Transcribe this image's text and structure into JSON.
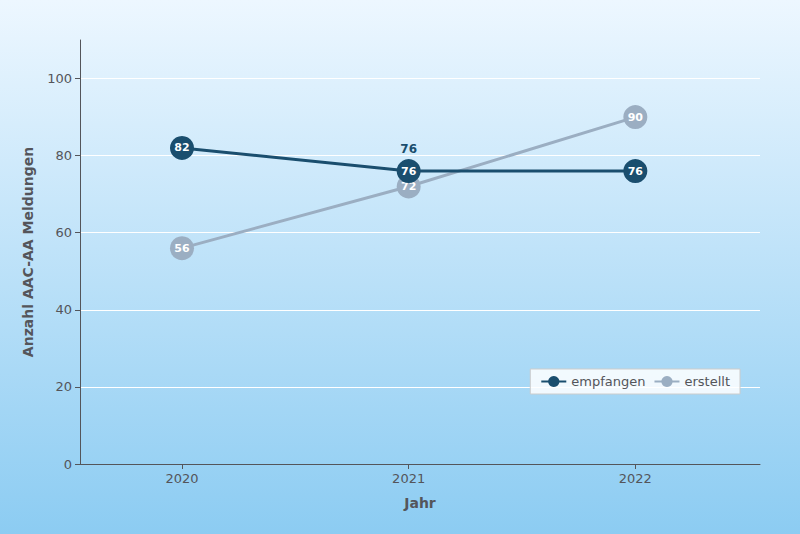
{
  "chart_data": {
    "type": "line",
    "x": [
      2020,
      2021,
      2022
    ],
    "series": [
      {
        "name": "empfangen",
        "color": "#1a4e6e",
        "values": [
          82,
          76,
          76
        ]
      },
      {
        "name": "erstellt",
        "color": "#9baec2",
        "values": [
          56,
          72,
          90
        ]
      }
    ],
    "xlabel": "Jahr",
    "ylabel": "Anzahl AAC-AA Meldungen",
    "xlim": [
      2019.55,
      2022.55
    ],
    "xticks": [
      2020,
      2021,
      2022
    ],
    "ylim": [
      0,
      110
    ],
    "yticks": [
      0,
      20,
      40,
      60,
      80,
      100
    ],
    "grid": true,
    "legend": "lower right",
    "data_labels": true,
    "marker": "circle",
    "annotations": [
      {
        "text": "76",
        "x": 2021,
        "y": 76
      }
    ]
  }
}
